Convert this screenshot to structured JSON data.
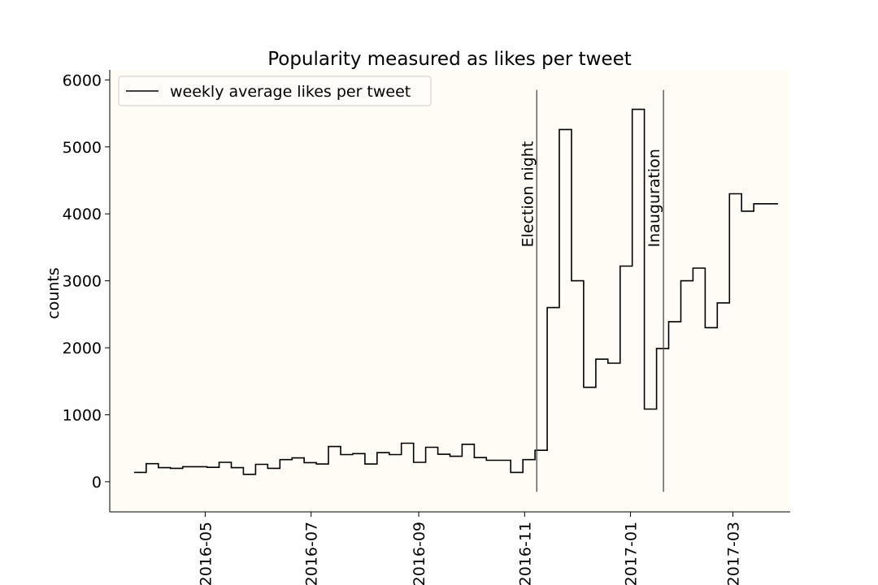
{
  "chart_data": {
    "type": "line",
    "step": true,
    "title": "Popularity measured as likes per tweet",
    "xlabel": "",
    "ylabel": "counts",
    "x_axis": "date",
    "xlim": [
      "2016-03-07",
      "2017-04-03"
    ],
    "ylim": [
      -450,
      6150
    ],
    "y_ticks": [
      0,
      1000,
      2000,
      3000,
      4000,
      5000,
      6000
    ],
    "x_ticks": [
      "2016-05-01",
      "2016-07-01",
      "2016-09-01",
      "2016-11-01",
      "2017-01-01",
      "2017-03-01"
    ],
    "x_tick_labels": [
      "2016-05",
      "2016-07",
      "2016-09",
      "2016-11",
      "2017-01",
      "2017-03"
    ],
    "legend": {
      "position": "top-left"
    },
    "grid": false,
    "colors": {
      "line": "#000000",
      "plot_bg": "#fffbf5",
      "vline": "#555555"
    },
    "series": [
      {
        "name": "weekly average likes per tweet",
        "x": [
          "2016-03-21",
          "2016-03-28",
          "2016-04-04",
          "2016-04-11",
          "2016-04-18",
          "2016-04-25",
          "2016-05-02",
          "2016-05-09",
          "2016-05-16",
          "2016-05-23",
          "2016-05-30",
          "2016-06-06",
          "2016-06-13",
          "2016-06-20",
          "2016-06-27",
          "2016-07-04",
          "2016-07-11",
          "2016-07-18",
          "2016-07-25",
          "2016-08-01",
          "2016-08-08",
          "2016-08-15",
          "2016-08-22",
          "2016-08-29",
          "2016-09-05",
          "2016-09-12",
          "2016-09-19",
          "2016-09-26",
          "2016-10-03",
          "2016-10-10",
          "2016-10-17",
          "2016-10-24",
          "2016-10-31",
          "2016-11-07",
          "2016-11-14",
          "2016-11-21",
          "2016-11-28",
          "2016-12-05",
          "2016-12-12",
          "2016-12-19",
          "2016-12-26",
          "2017-01-02",
          "2017-01-09",
          "2017-01-16",
          "2017-01-23",
          "2017-01-30",
          "2017-02-06",
          "2017-02-13",
          "2017-02-20",
          "2017-02-27",
          "2017-03-06",
          "2017-03-13",
          "2017-03-20"
        ],
        "values": [
          140,
          270,
          210,
          200,
          225,
          225,
          215,
          290,
          210,
          110,
          260,
          200,
          330,
          355,
          285,
          265,
          525,
          405,
          420,
          265,
          435,
          405,
          575,
          290,
          515,
          410,
          380,
          560,
          360,
          320,
          320,
          140,
          330,
          470,
          2600,
          5260,
          3000,
          1410,
          1830,
          1770,
          3220,
          5560,
          1085,
          1990,
          2390,
          3000,
          3190,
          2300,
          2670,
          4300,
          4040,
          4150,
          4150
        ]
      }
    ],
    "annotations": [
      {
        "label": "Election night",
        "x": "2016-11-08"
      },
      {
        "label": "Inauguration",
        "x": "2017-01-20"
      }
    ]
  }
}
